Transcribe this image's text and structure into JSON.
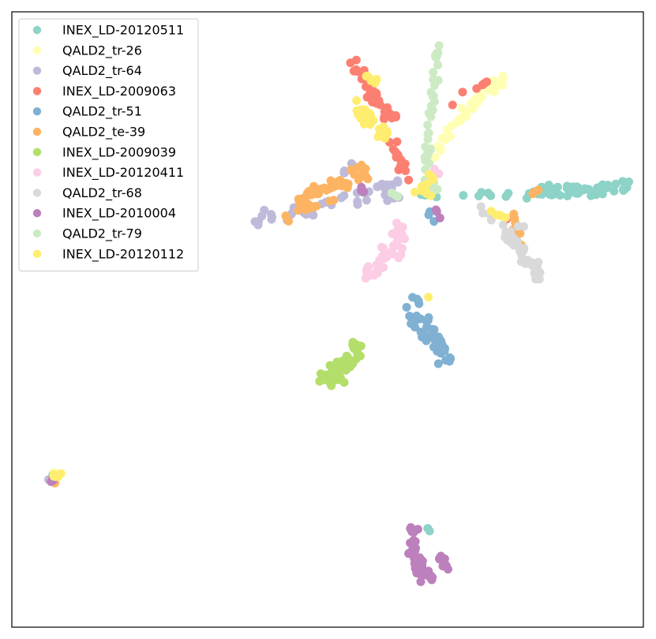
{
  "chart_data": {
    "type": "scatter",
    "title": "",
    "xlabel": "",
    "ylabel": "",
    "xlim": [
      0,
      100
    ],
    "ylim": [
      0,
      100
    ],
    "grid": false,
    "ticks": false,
    "legend_position": "top-left",
    "series": [
      {
        "name": "INEX_LD-20120511",
        "color": "#8dd3c7",
        "clusters": [
          {
            "path": [
              [
                80,
                70.5
              ],
              [
                85,
                70.8
              ],
              [
                92,
                71.2
              ],
              [
                98,
                71.8
              ]
            ],
            "width": 1.3,
            "n": 55
          },
          {
            "path": [
              [
                64,
                70.5
              ],
              [
                72,
                70.2
              ],
              [
                79,
                70.3
              ]
            ],
            "width": 0.8,
            "n": 12
          },
          {
            "path": [
              [
                5.5,
                24.5
              ],
              [
                6.5,
                24.8
              ]
            ],
            "width": 0.5,
            "n": 3
          },
          {
            "path": [
              [
                65,
                15.5
              ],
              [
                66,
                15.8
              ]
            ],
            "width": 0.4,
            "n": 2
          }
        ]
      },
      {
        "name": "QALD2_tr-26",
        "color": "#ffffb3",
        "clusters": [
          {
            "path": [
              [
                69,
                80.5
              ],
              [
                72.5,
                84.5
              ],
              [
                76,
                87.5
              ],
              [
                79,
                90
              ]
            ],
            "width": 1.1,
            "n": 38
          },
          {
            "path": [
              [
                66,
                75.5
              ],
              [
                68,
                78.5
              ],
              [
                69,
                80.5
              ]
            ],
            "width": 0.7,
            "n": 10
          },
          {
            "path": [
              [
                5.5,
                24.2
              ],
              [
                7,
                24.8
              ]
            ],
            "width": 0.6,
            "n": 4
          }
        ]
      },
      {
        "name": "QALD2_tr-64",
        "color": "#bebada",
        "clusters": [
          {
            "path": [
              [
                39,
                67
              ],
              [
                43,
                67.5
              ],
              [
                48,
                68.5
              ],
              [
                53,
                70
              ],
              [
                58,
                71.5
              ],
              [
                62,
                72
              ]
            ],
            "width": 1.0,
            "n": 28
          },
          {
            "path": [
              [
                38,
                65
              ],
              [
                48,
                67.5
              ],
              [
                58,
                69.5
              ],
              [
                63,
                70.5
              ]
            ],
            "width": 0.7,
            "n": 16
          },
          {
            "path": [
              [
                52.5,
                74
              ],
              [
                54,
                75
              ]
            ],
            "width": 0.5,
            "n": 5
          },
          {
            "path": [
              [
                6,
                24
              ],
              [
                7,
                24.6
              ]
            ],
            "width": 0.4,
            "n": 3
          }
        ]
      },
      {
        "name": "INEX_LD-2009063",
        "color": "#fb8072",
        "clusters": [
          {
            "path": [
              [
                54,
                91.5
              ],
              [
                56.5,
                88
              ],
              [
                58.5,
                85
              ],
              [
                60.5,
                82.5
              ]
            ],
            "width": 1.2,
            "n": 38
          },
          {
            "path": [
              [
                60,
                79
              ],
              [
                62,
                75
              ],
              [
                64,
                72
              ]
            ],
            "width": 0.9,
            "n": 14
          },
          {
            "path": [
              [
                69,
                85
              ],
              [
                72,
                87.5
              ],
              [
                75.5,
                88.5
              ]
            ],
            "width": 0.5,
            "n": 6
          },
          {
            "path": [
              [
                78.5,
                67.5
              ],
              [
                80,
                64
              ]
            ],
            "width": 0.6,
            "n": 4
          }
        ]
      },
      {
        "name": "QALD2_tr-51",
        "color": "#80b1d3",
        "clusters": [
          {
            "path": [
              [
                63.5,
                51.5
              ],
              [
                65.5,
                48.5
              ],
              [
                67.5,
                45.5
              ],
              [
                69,
                43.5
              ]
            ],
            "width": 1.3,
            "n": 42
          },
          {
            "path": [
              [
                62.5,
                54
              ],
              [
                64.5,
                53
              ]
            ],
            "width": 0.6,
            "n": 4
          },
          {
            "path": [
              [
                66,
                68
              ],
              [
                67,
                66
              ]
            ],
            "width": 0.5,
            "n": 3
          },
          {
            "path": [
              [
                69,
                44
              ],
              [
                70,
                43
              ]
            ],
            "width": 0.5,
            "n": 3
          }
        ]
      },
      {
        "name": "QALD2_te-39",
        "color": "#fdb462",
        "clusters": [
          {
            "path": [
              [
                45,
                69
              ],
              [
                49,
                71
              ],
              [
                53,
                72.5
              ],
              [
                56,
                74
              ]
            ],
            "width": 1.3,
            "n": 45
          },
          {
            "path": [
              [
                43,
                66.5
              ],
              [
                47,
                68
              ],
              [
                51,
                69.5
              ]
            ],
            "width": 0.8,
            "n": 10
          },
          {
            "path": [
              [
                79.5,
                67
              ],
              [
                80.5,
                64
              ],
              [
                79.5,
                61
              ]
            ],
            "width": 0.8,
            "n": 8
          },
          {
            "path": [
              [
                83,
                71
              ]
            ],
            "width": 0.5,
            "n": 3
          },
          {
            "path": [
              [
                6,
                24
              ],
              [
                7,
                23.5
              ]
            ],
            "width": 0.4,
            "n": 3
          }
        ]
      },
      {
        "name": "INEX_LD-2009039",
        "color": "#b3de69",
        "clusters": [
          {
            "path": [
              [
                54.5,
                46
              ],
              [
                53.5,
                43
              ],
              [
                51.5,
                41
              ],
              [
                49,
                40
              ]
            ],
            "width": 1.6,
            "n": 55
          }
        ]
      },
      {
        "name": "INEX_LD-20120411",
        "color": "#fccde5",
        "clusters": [
          {
            "path": [
              [
                62,
                65
              ],
              [
                60.5,
                62
              ],
              [
                58.5,
                59.5
              ],
              [
                56.5,
                57.5
              ]
            ],
            "width": 1.4,
            "n": 45
          },
          {
            "path": [
              [
                68,
                73.5
              ],
              [
                67,
                74.5
              ]
            ],
            "width": 0.5,
            "n": 3
          }
        ]
      },
      {
        "name": "QALD2_tr-68",
        "color": "#d9d9d9",
        "clusters": [
          {
            "path": [
              [
                74,
                68.5
              ],
              [
                77,
                65.5
              ],
              [
                80.5,
                61
              ],
              [
                83.5,
                57
              ]
            ],
            "width": 1.0,
            "n": 35
          },
          {
            "path": [
              [
                78,
                63
              ],
              [
                81,
                65.5
              ]
            ],
            "width": 0.7,
            "n": 8
          }
        ]
      },
      {
        "name": "INEX_LD-2010004",
        "color": "#bc80bd",
        "clusters": [
          {
            "path": [
              [
                63.5,
                16
              ],
              [
                63.5,
                13
              ],
              [
                64.5,
                10
              ],
              [
                66.5,
                7.5
              ]
            ],
            "width": 1.2,
            "n": 40
          },
          {
            "path": [
              [
                67.5,
                11.5
              ],
              [
                68.5,
                10
              ]
            ],
            "width": 0.7,
            "n": 8
          },
          {
            "path": [
              [
                6,
                23.8
              ],
              [
                7,
                24.5
              ]
            ],
            "width": 0.5,
            "n": 3
          },
          {
            "path": [
              [
                66,
                70.5
              ],
              [
                68,
                66
              ]
            ],
            "width": 0.5,
            "n": 4
          },
          {
            "path": [
              [
                55,
                71.5
              ],
              [
                56.5,
                70.5
              ]
            ],
            "width": 0.5,
            "n": 3
          }
        ]
      },
      {
        "name": "QALD2_tr-79",
        "color": "#ccebc5",
        "clusters": [
          {
            "path": [
              [
                67.5,
                95.5
              ],
              [
                67,
                90
              ],
              [
                66.5,
                84
              ],
              [
                66,
                77
              ],
              [
                65.5,
                72
              ]
            ],
            "width": 0.6,
            "n": 40
          },
          {
            "path": [
              [
                66,
                74
              ],
              [
                67,
                70.5
              ]
            ],
            "width": 0.6,
            "n": 6
          },
          {
            "path": [
              [
                59.5,
                71
              ],
              [
                61,
                70
              ]
            ],
            "width": 0.4,
            "n": 3
          }
        ]
      },
      {
        "name": "INEX_LD-20120112",
        "color": "#ffed6f",
        "clusters": [
          {
            "path": [
              [
                54.5,
                84.5
              ],
              [
                56.5,
                82
              ],
              [
                59,
                79.5
              ]
            ],
            "width": 1.3,
            "n": 28
          },
          {
            "path": [
              [
                56,
                90
              ],
              [
                58,
                88.5
              ]
            ],
            "width": 0.6,
            "n": 6
          },
          {
            "path": [
              [
                64,
                71.5
              ],
              [
                66,
                70.5
              ],
              [
                66,
                73.5
              ]
            ],
            "width": 0.8,
            "n": 12
          },
          {
            "path": [
              [
                76,
                67.5
              ],
              [
                78.5,
                66.5
              ]
            ],
            "width": 0.5,
            "n": 5
          },
          {
            "path": [
              [
                6.5,
                24.5
              ],
              [
                7.5,
                25
              ]
            ],
            "width": 0.5,
            "n": 6
          },
          {
            "path": [
              [
                66,
                53.5
              ]
            ],
            "width": 0.3,
            "n": 1
          }
        ]
      }
    ]
  }
}
